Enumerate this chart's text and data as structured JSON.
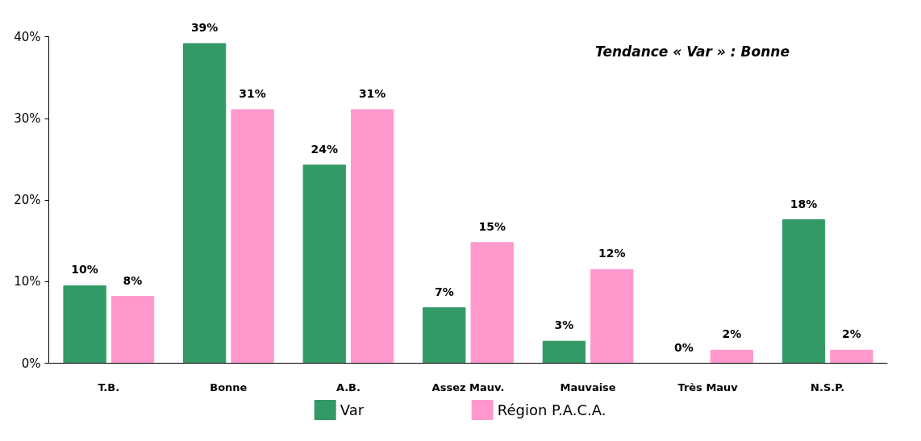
{
  "chart_data": {
    "type": "bar",
    "categories": [
      "T.B.",
      "Bonne",
      "A.B.",
      "Assez Mauv.",
      "Mauvaise",
      "Très Mauv",
      "N.S.P."
    ],
    "series": [
      {
        "name": "Var",
        "color": "#339966",
        "values": [
          9.5,
          39.2,
          24.3,
          6.8,
          2.7,
          0,
          17.6
        ],
        "value_labels": [
          "10%",
          "39%",
          "24%",
          "7%",
          "3%",
          "0%",
          "18%"
        ]
      },
      {
        "name": "Région P.A.C.A.",
        "color": "#ff99cc",
        "values": [
          8.2,
          31.1,
          31.1,
          14.8,
          11.5,
          1.6,
          1.6
        ],
        "value_labels": [
          "8%",
          "31%",
          "31%",
          "15%",
          "12%",
          "2%",
          "2%"
        ]
      }
    ],
    "ylim": [
      0,
      40
    ],
    "yticks": [
      {
        "value": 0,
        "label": "0%"
      },
      {
        "value": 10,
        "label": "10%"
      },
      {
        "value": 20,
        "label": "20%"
      },
      {
        "value": 30,
        "label": "30%"
      },
      {
        "value": 40,
        "label": "40%"
      }
    ],
    "annotations": [
      "Tendance « Var » : Bonne"
    ],
    "grid": false,
    "legend": "bottom"
  }
}
